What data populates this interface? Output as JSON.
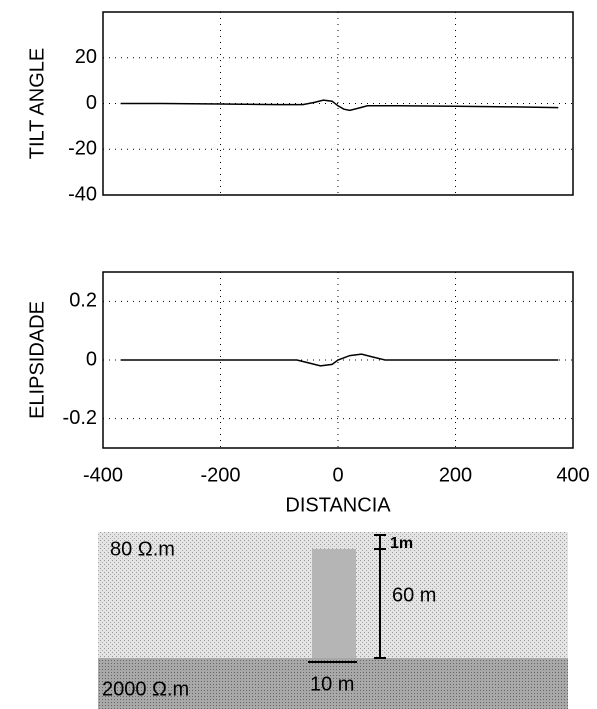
{
  "chart_data": [
    {
      "type": "line",
      "ylabel": "TILT ANGLE",
      "x": [
        -370,
        -300,
        -200,
        -100,
        -60,
        -40,
        -25,
        -10,
        0,
        10,
        20,
        35,
        50,
        80,
        100,
        200,
        300,
        375
      ],
      "values": [
        0,
        0,
        -0.2,
        -0.5,
        -0.5,
        0.5,
        1.5,
        1,
        -1,
        -2.5,
        -3,
        -2,
        -1,
        -1,
        -1,
        -1.2,
        -1.5,
        -1.8
      ],
      "color": "#000000",
      "xlim": [
        -400,
        400
      ],
      "xticks": [
        -400,
        -200,
        0,
        200,
        400
      ],
      "xticklabels": false,
      "ylim": [
        -40,
        40
      ],
      "yticks": [
        -40,
        -20,
        0,
        20
      ],
      "grid": true
    },
    {
      "type": "line",
      "ylabel": "ELIPSIDADE",
      "xlabel": "DISTANCIA",
      "x": [
        -370,
        -200,
        -100,
        -70,
        -50,
        -30,
        -10,
        0,
        20,
        40,
        60,
        80,
        100,
        200,
        375
      ],
      "values": [
        0,
        0,
        0,
        0,
        -0.01,
        -0.02,
        -0.015,
        0,
        0.015,
        0.02,
        0.01,
        0,
        0,
        0,
        0
      ],
      "color": "#000000",
      "xlim": [
        -400,
        400
      ],
      "xticks": [
        -400,
        -200,
        0,
        200,
        400
      ],
      "xticklabels": true,
      "ylim": [
        -0.3,
        0.3
      ],
      "yticks": [
        -0.2,
        0,
        0.2
      ],
      "grid": true
    }
  ],
  "diagram": {
    "upper_layer": "80 Ω.m",
    "lower_layer": "2000 Ω.m",
    "depth": "1m",
    "height": "60 m",
    "width": "10 m"
  }
}
